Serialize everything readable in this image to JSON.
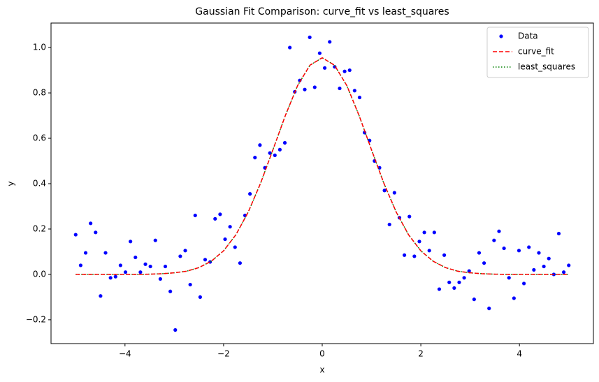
{
  "chart_data": {
    "type": "scatter",
    "title": "Gaussian Fit Comparison: curve_fit vs least_squares",
    "x_label": "x",
    "y_label": "y",
    "xlim": [
      -5.5,
      5.5
    ],
    "ylim": [
      -0.305,
      1.108
    ],
    "xticks": [
      {
        "value": -4,
        "label": "−4"
      },
      {
        "value": -2,
        "label": "−2"
      },
      0,
      2,
      4
    ],
    "yticks": [
      {
        "value": -0.2,
        "label": "−0.2"
      },
      {
        "value": 0,
        "label": "0.0"
      },
      0.2,
      0.4,
      0.6,
      0.8,
      {
        "value": 1,
        "label": "1.0"
      }
    ],
    "legend": "upper right",
    "series": [
      {
        "name": "Data",
        "color": "#0000ff",
        "style": "points",
        "x": [
          -5,
          -4.899,
          -4.798,
          -4.697,
          -4.596,
          -4.495,
          -4.394,
          -4.293,
          -4.192,
          -4.091,
          -3.99,
          -3.889,
          -3.788,
          -3.687,
          -3.586,
          -3.485,
          -3.384,
          -3.283,
          -3.182,
          -3.081,
          -2.98,
          -2.879,
          -2.778,
          -2.677,
          -2.576,
          -2.475,
          -2.374,
          -2.273,
          -2.172,
          -2.071,
          -1.97,
          -1.869,
          -1.768,
          -1.667,
          -1.566,
          -1.465,
          -1.364,
          -1.263,
          -1.162,
          -1.061,
          -0.96,
          -0.859,
          -0.758,
          -0.657,
          -0.556,
          -0.455,
          -0.354,
          -0.253,
          -0.152,
          -0.051,
          0.051,
          0.152,
          0.253,
          0.354,
          0.455,
          0.556,
          0.657,
          0.758,
          0.859,
          0.96,
          1.061,
          1.162,
          1.263,
          1.364,
          1.465,
          1.566,
          1.667,
          1.768,
          1.869,
          1.97,
          2.071,
          2.172,
          2.273,
          2.374,
          2.475,
          2.576,
          2.677,
          2.778,
          2.879,
          2.98,
          3.081,
          3.182,
          3.283,
          3.384,
          3.485,
          3.586,
          3.687,
          3.788,
          3.889,
          3.99,
          4.091,
          4.192,
          4.293,
          4.394,
          4.495,
          4.596,
          4.697,
          4.798,
          4.899,
          5
        ],
        "values": [
          0.175,
          0.04,
          0.095,
          0.225,
          0.185,
          -0.095,
          0.095,
          -0.015,
          -0.01,
          0.04,
          0.01,
          0.145,
          0.075,
          0.01,
          0.045,
          0.035,
          0.15,
          -0.02,
          0.035,
          -0.075,
          -0.245,
          0.08,
          0.105,
          -0.045,
          0.26,
          -0.1,
          0.065,
          0.055,
          0.245,
          0.265,
          0.155,
          0.21,
          0.12,
          0.05,
          0.26,
          0.355,
          0.515,
          0.57,
          0.47,
          0.535,
          0.525,
          0.55,
          0.58,
          1.0,
          0.805,
          0.855,
          0.815,
          1.045,
          0.825,
          0.975,
          0.91,
          1.025,
          0.915,
          0.82,
          0.895,
          0.9,
          0.81,
          0.78,
          0.625,
          0.59,
          0.5,
          0.47,
          0.37,
          0.22,
          0.36,
          0.25,
          0.085,
          0.255,
          0.08,
          0.145,
          0.185,
          0.105,
          0.185,
          -0.065,
          0.085,
          -0.035,
          -0.06,
          -0.035,
          -0.015,
          0.015,
          -0.11,
          0.095,
          0.05,
          -0.15,
          0.15,
          0.19,
          0.115,
          -0.015,
          -0.105,
          0.105,
          -0.04,
          0.12,
          0.02,
          0.095,
          0.035,
          0.07,
          0.0,
          0.18,
          0.01,
          0.04
        ]
      },
      {
        "name": "least_squares",
        "color": "#008000",
        "style": "dotted",
        "legend_order": 2,
        "x": [
          -5,
          -4.75,
          -4.5,
          -4.25,
          -4,
          -3.75,
          -3.5,
          -3.25,
          -3,
          -2.75,
          -2.5,
          -2.25,
          -2,
          -1.75,
          -1.5,
          -1.25,
          -1,
          -0.75,
          -0.5,
          -0.25,
          0,
          0.25,
          0.5,
          0.75,
          1,
          1.25,
          1.5,
          1.75,
          2,
          2.25,
          2.5,
          2.75,
          3,
          3.25,
          3.5,
          3.75,
          4,
          4.25,
          4.5,
          4.75,
          5
        ],
        "values": [
          0,
          0,
          0,
          0,
          0,
          0,
          0.001,
          0.003,
          0.007,
          0.014,
          0.03,
          0.058,
          0.104,
          0.175,
          0.275,
          0.402,
          0.549,
          0.699,
          0.832,
          0.922,
          0.955,
          0.922,
          0.832,
          0.699,
          0.549,
          0.402,
          0.275,
          0.175,
          0.104,
          0.058,
          0.03,
          0.014,
          0.007,
          0.003,
          0.001,
          0,
          0,
          0,
          0,
          0,
          0
        ]
      },
      {
        "name": "curve_fit",
        "color": "#ff0000",
        "style": "dashed",
        "legend_order": 1,
        "x": [
          -5,
          -4.75,
          -4.5,
          -4.25,
          -4,
          -3.75,
          -3.5,
          -3.25,
          -3,
          -2.75,
          -2.5,
          -2.25,
          -2,
          -1.75,
          -1.5,
          -1.25,
          -1,
          -0.75,
          -0.5,
          -0.25,
          0,
          0.25,
          0.5,
          0.75,
          1,
          1.25,
          1.5,
          1.75,
          2,
          2.25,
          2.5,
          2.75,
          3,
          3.25,
          3.5,
          3.75,
          4,
          4.25,
          4.5,
          4.75,
          5
        ],
        "values": [
          0,
          0,
          0,
          0,
          0,
          0,
          0.001,
          0.003,
          0.007,
          0.014,
          0.03,
          0.058,
          0.104,
          0.175,
          0.275,
          0.402,
          0.549,
          0.699,
          0.832,
          0.922,
          0.955,
          0.922,
          0.832,
          0.699,
          0.549,
          0.402,
          0.275,
          0.175,
          0.104,
          0.058,
          0.03,
          0.014,
          0.007,
          0.003,
          0.001,
          0,
          0,
          0,
          0,
          0,
          0
        ]
      }
    ]
  }
}
